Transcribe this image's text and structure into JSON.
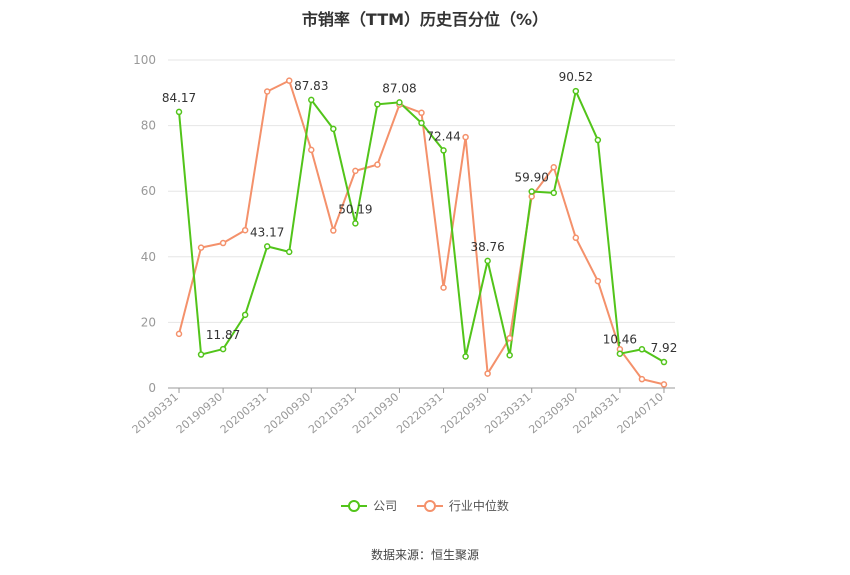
{
  "chart_data": {
    "type": "line",
    "title": "市销率（TTM）历史百分位（%）",
    "source": "数据来源：恒生聚源",
    "ylim": [
      0,
      100
    ],
    "yticks": [
      0,
      20,
      40,
      60,
      80,
      100
    ],
    "x_tick_labels": [
      "20190331",
      "20190930",
      "20200331",
      "20200930",
      "20210331",
      "20210930",
      "20220331",
      "20220930",
      "20230331",
      "20230930",
      "20240331",
      "20240710"
    ],
    "x_tick_positions": [
      0,
      2,
      4,
      6,
      8,
      10,
      12,
      14,
      16,
      18,
      20,
      22
    ],
    "grid": true,
    "legend_position": "bottom",
    "series": [
      {
        "name": "公司",
        "color": "#52c41a",
        "values": [
          84.17,
          10.2,
          11.87,
          22.3,
          43.17,
          41.5,
          87.83,
          79.0,
          50.19,
          86.5,
          87.08,
          80.8,
          72.44,
          9.6,
          38.76,
          10.0,
          59.9,
          59.5,
          90.52,
          75.6,
          10.46,
          11.8,
          7.92
        ],
        "data_labels": {
          "0": "84.17",
          "2": "11.87",
          "4": "43.17",
          "6": "87.83",
          "8": "50.19",
          "10": "87.08",
          "12": "72.44",
          "14": "38.76",
          "16": "59.90",
          "18": "90.52",
          "20": "10.46",
          "22": "7.92"
        }
      },
      {
        "name": "行业中位数",
        "color": "#f4916b",
        "values": [
          16.5,
          42.8,
          44.2,
          48.1,
          90.4,
          93.7,
          72.6,
          48.0,
          66.2,
          68.1,
          86.4,
          83.9,
          30.6,
          76.5,
          4.4,
          15.2,
          58.4,
          67.3,
          45.8,
          32.6,
          11.8,
          2.7,
          1.1
        ]
      }
    ]
  },
  "legend": {
    "company": "公司",
    "industry": "行业中位数"
  }
}
